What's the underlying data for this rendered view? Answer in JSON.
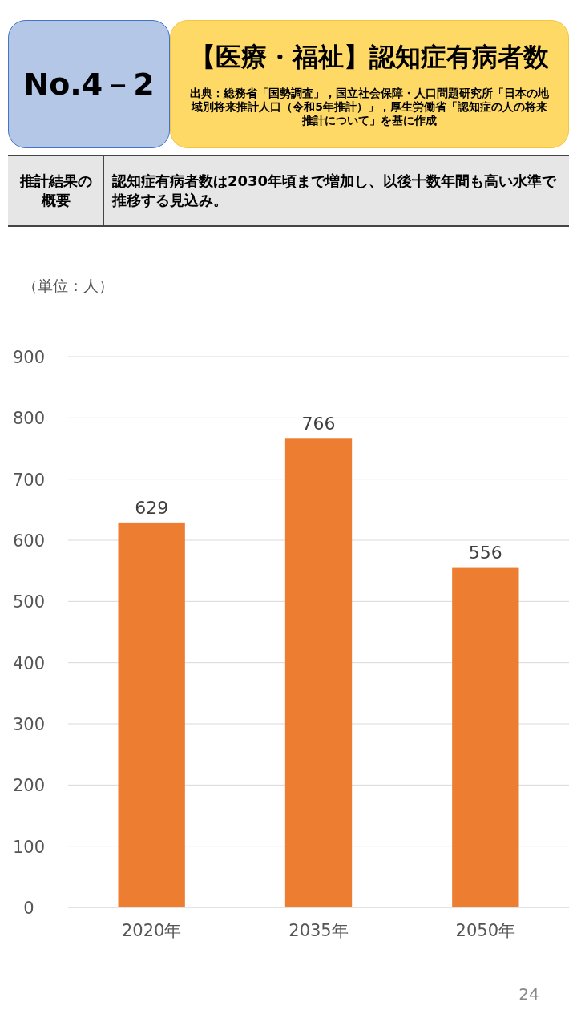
{
  "chart_data": {
    "type": "bar",
    "title": "【医療・福祉】認知症有病者数",
    "ylabel": "（単位：人）",
    "annotations": [
      "No.4－2",
      "出典：総務省「国勢調査」，国立社会保障・人口問題研究所「日本の地域別将来推計人口（令和5年推計）」，厚生労働省「認知症の人の将来推計について」を基に作成",
      "推計結果の概要",
      "認知症有病者数は2030年頃まで増加し、以後十数年間も高い水準で推移する見込み。",
      "24"
    ],
    "categories": [
      "2020年",
      "2035年",
      "2050年"
    ],
    "values": [
      629,
      766,
      556
    ],
    "color": "#ed7d31",
    "ylim": [
      0,
      900
    ],
    "yticks": [
      0,
      100,
      200,
      300,
      400,
      500,
      600,
      700,
      800,
      900
    ],
    "grid": "y",
    "data_labels": true
  }
}
